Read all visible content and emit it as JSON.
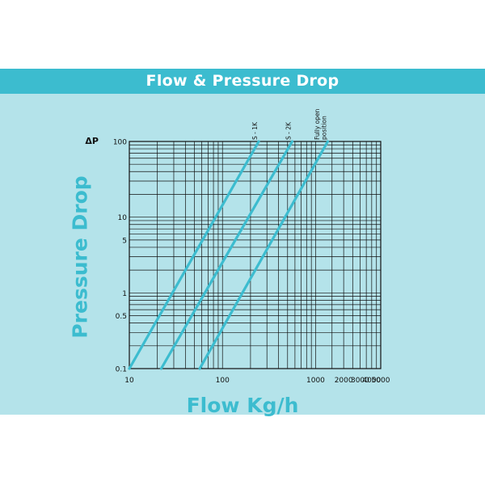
{
  "title": "Flow & Pressure Drop",
  "chart_data": {
    "type": "line",
    "xscale": "log",
    "yscale": "log",
    "xlim": [
      10,
      5000
    ],
    "ylim": [
      0.1,
      100
    ],
    "xlabel": "Flow Kg/h",
    "ylabel": "Pressure Drop",
    "y_unit_label": "ΔP",
    "grid": true,
    "x_ticks": [
      "10",
      "100",
      "1000",
      "2000",
      "3000",
      "4000",
      "5000"
    ],
    "x_tick_values": [
      10,
      100,
      1000,
      2000,
      3000,
      4000,
      5000
    ],
    "y_ticks": [
      "100",
      "10",
      "5",
      "1",
      "0.5",
      "0.1"
    ],
    "y_tick_values": [
      100,
      10,
      5,
      1,
      0.5,
      0.1
    ],
    "series": [
      {
        "name": "S - 1K",
        "x": [
          10,
          245
        ],
        "y": [
          0.1,
          100
        ]
      },
      {
        "name": "S - 2K",
        "x": [
          22,
          560
        ],
        "y": [
          0.1,
          100
        ]
      },
      {
        "name": "Fully open position",
        "x": [
          57,
          1350
        ],
        "y": [
          0.1,
          100
        ]
      }
    ],
    "series_label_lines": [
      [
        "S - 1K"
      ],
      [
        "S - 2K"
      ],
      [
        "Fully open",
        "position"
      ]
    ],
    "colors": {
      "line": "#3cbccf",
      "grid": "#111111",
      "panel": "#b4e3ea",
      "title_bar": "#3cbccf"
    }
  }
}
